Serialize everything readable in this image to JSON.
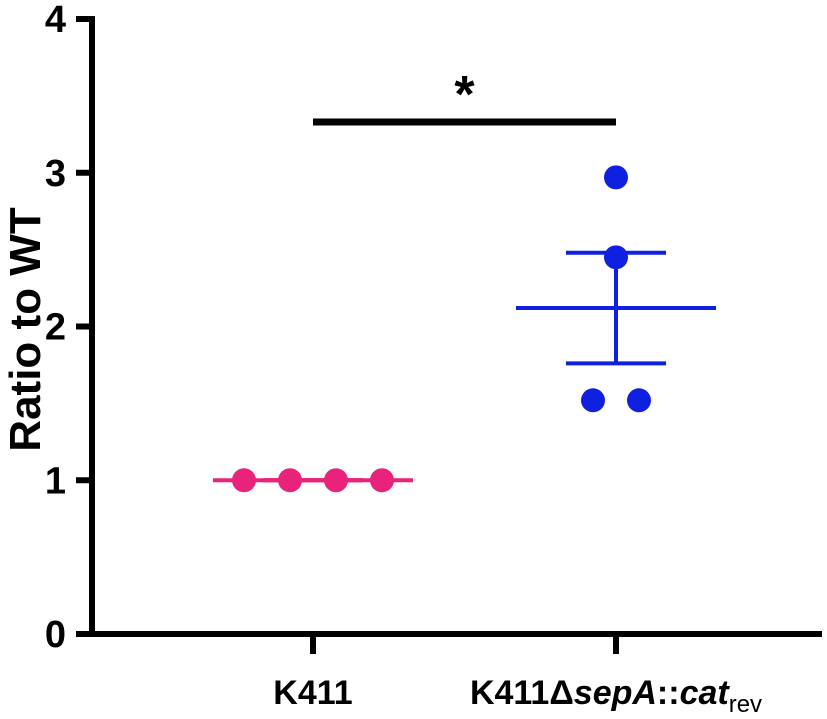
{
  "chart_data": {
    "type": "scatter",
    "ylabel": "Ratio to WT",
    "xlabel": "",
    "ylim": [
      0,
      4
    ],
    "yticks": [
      0,
      1,
      2,
      3,
      4
    ],
    "categories": [
      {
        "parts": [
          {
            "text": "K411",
            "style": "normal"
          }
        ]
      },
      {
        "parts": [
          {
            "text": "K411Δ",
            "style": "normal"
          },
          {
            "text": "sepA",
            "style": "italic"
          },
          {
            "text": "::",
            "style": "normal"
          },
          {
            "text": "cat",
            "style": "italic"
          },
          {
            "text": "rev",
            "style": "sub"
          }
        ]
      }
    ],
    "series": [
      {
        "category_index": 0,
        "color": "#e8237a",
        "points": [
          1.0,
          1.0,
          1.0,
          1.0
        ],
        "mean": 1.0,
        "error_low": 1.0,
        "error_high": 1.0
      },
      {
        "category_index": 1,
        "color": "#1020e0",
        "points": [
          2.97,
          2.45,
          1.52,
          1.52
        ],
        "mean": 2.12,
        "error_low": 1.76,
        "error_high": 2.48
      }
    ],
    "significance": {
      "from": 0,
      "to": 1,
      "label": "*",
      "y": 3.33
    }
  }
}
